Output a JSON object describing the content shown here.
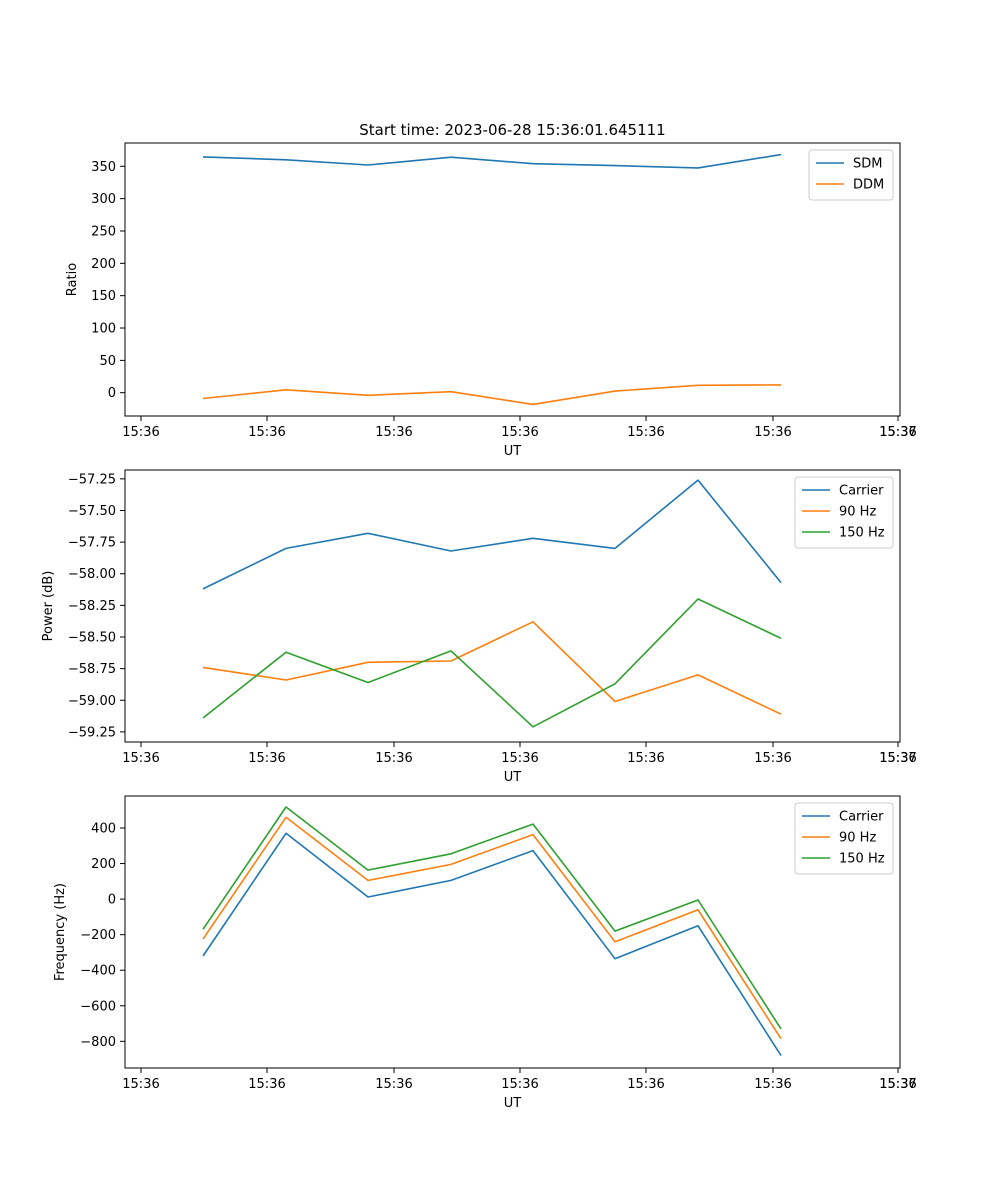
{
  "chart_data": [
    {
      "type": "line",
      "title": "Start time: 2023-06-28 15:36:01.645111",
      "xlabel": "UT",
      "ylabel": "Ratio",
      "xticks": [
        "15:36",
        "15:36",
        "15:36",
        "15:36",
        "15:36",
        "15:36",
        "15:36",
        "15:37"
      ],
      "yticks": [
        "0",
        "50",
        "100",
        "150",
        "200",
        "250",
        "300",
        "350"
      ],
      "ytick_values": [
        0,
        50,
        100,
        150,
        200,
        250,
        300,
        350
      ],
      "ylim": [
        -36,
        386
      ],
      "legend": "top-right",
      "series": [
        {
          "name": "SDM",
          "color": "#1f77b4",
          "values": [
            364.5,
            360,
            352,
            364,
            354,
            351,
            347.5,
            368
          ]
        },
        {
          "name": "DDM",
          "color": "#ff7f0e",
          "values": [
            -9,
            4.5,
            -4,
            1.5,
            -18,
            2.5,
            11.5,
            12
          ]
        }
      ]
    },
    {
      "type": "line",
      "title": "",
      "xlabel": "UT",
      "ylabel": "Power (dB)",
      "xticks": [
        "15:36",
        "15:36",
        "15:36",
        "15:36",
        "15:36",
        "15:36",
        "15:36",
        "15:37"
      ],
      "yticks": [
        "−57.25",
        "−57.50",
        "−57.75",
        "−58.00",
        "−58.25",
        "−58.50",
        "−58.75",
        "−59.00",
        "−59.25"
      ],
      "ytick_values": [
        -57.25,
        -57.5,
        -57.75,
        -58.0,
        -58.25,
        -58.5,
        -58.75,
        -59.0,
        -59.25
      ],
      "ylim": [
        -59.33,
        -57.18
      ],
      "legend": "top-right",
      "series": [
        {
          "name": "Carrier",
          "color": "#1f77b4",
          "values": [
            -58.12,
            -57.8,
            -57.68,
            -57.82,
            -57.72,
            -57.8,
            -57.26,
            -58.07
          ]
        },
        {
          "name": "90 Hz",
          "color": "#ff7f0e",
          "values": [
            -58.74,
            -58.84,
            -58.7,
            -58.69,
            -58.38,
            -59.01,
            -58.8,
            -59.11
          ]
        },
        {
          "name": "150 Hz",
          "color": "#2ca02c",
          "values": [
            -59.14,
            -58.62,
            -58.86,
            -58.61,
            -59.21,
            -58.87,
            -58.2,
            -58.51
          ]
        }
      ]
    },
    {
      "type": "line",
      "title": "",
      "xlabel": "UT",
      "ylabel": "Frequency (Hz)",
      "xticks": [
        "15:36",
        "15:36",
        "15:36",
        "15:36",
        "15:36",
        "15:36",
        "15:36",
        "15:37"
      ],
      "yticks": [
        "−800",
        "−600",
        "−400",
        "−200",
        "0",
        "200",
        "400"
      ],
      "ytick_values": [
        -800,
        -600,
        -400,
        -200,
        0,
        200,
        400
      ],
      "ylim": [
        -950,
        580
      ],
      "legend": "top-right",
      "series": [
        {
          "name": "Carrier",
          "color": "#1f77b4",
          "values": [
            -320,
            370,
            12,
            105,
            273,
            -335,
            -150,
            -880
          ]
        },
        {
          "name": "90 Hz",
          "color": "#ff7f0e",
          "values": [
            -225,
            460,
            105,
            195,
            363,
            -240,
            -60,
            -785
          ]
        },
        {
          "name": "150 Hz",
          "color": "#2ca02c",
          "values": [
            -170,
            518,
            163,
            255,
            422,
            -180,
            -5,
            -730
          ]
        }
      ]
    }
  ]
}
